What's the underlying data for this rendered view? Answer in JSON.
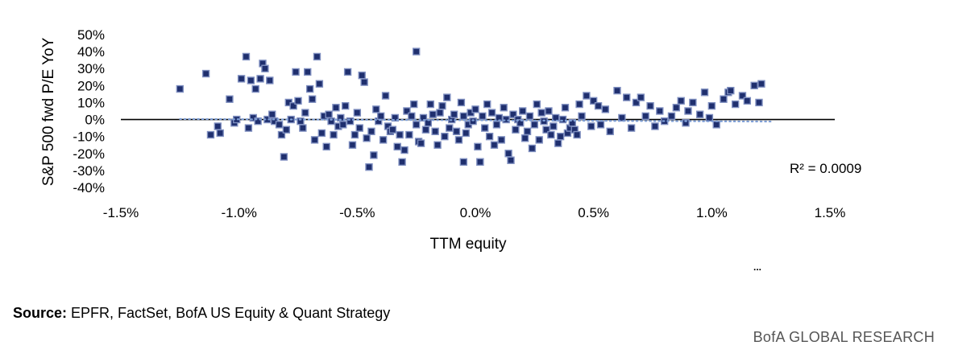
{
  "chart_data": {
    "type": "scatter",
    "xlabel": "TTM equity",
    "ylabel": "S&P 500 fwd P/E YoY",
    "x_ticks": [
      "-1.5%",
      "-1.0%",
      "-0.5%",
      "0.0%",
      "0.5%",
      "1.0%",
      "1.5%"
    ],
    "y_ticks": [
      "50%",
      "40%",
      "30%",
      "20%",
      "10%",
      "0%",
      "-10%",
      "-20%",
      "-30%",
      "-40%"
    ],
    "xlim": [
      -1.5,
      1.5
    ],
    "ylim": [
      -40,
      50
    ],
    "x_unit": "%",
    "y_unit": "%",
    "grid": false,
    "trendline": {
      "style": "dotted",
      "color": "#7f9fd6",
      "points": [
        [
          -1.25,
          0.3
        ],
        [
          1.25,
          -1.2
        ]
      ]
    },
    "r_squared_text": "R² = 0.0009",
    "marker": {
      "shape": "square",
      "fill": "#1f2f6e",
      "stroke": "#7f8fc0"
    },
    "points": [
      [
        -1.25,
        18
      ],
      [
        -1.14,
        27
      ],
      [
        -1.12,
        -9
      ],
      [
        -1.09,
        -4
      ],
      [
        -1.08,
        -8
      ],
      [
        -1.04,
        12
      ],
      [
        -1.02,
        -2
      ],
      [
        -1.01,
        0
      ],
      [
        -0.99,
        24
      ],
      [
        -0.97,
        37
      ],
      [
        -0.96,
        -5
      ],
      [
        -0.95,
        23
      ],
      [
        -0.94,
        1
      ],
      [
        -0.93,
        18
      ],
      [
        -0.92,
        -1
      ],
      [
        -0.91,
        24
      ],
      [
        -0.9,
        33
      ],
      [
        -0.89,
        30
      ],
      [
        -0.88,
        0
      ],
      [
        -0.87,
        23
      ],
      [
        -0.86,
        3
      ],
      [
        -0.85,
        -1
      ],
      [
        -0.83,
        -3
      ],
      [
        -0.82,
        -9
      ],
      [
        -0.81,
        -22
      ],
      [
        -0.8,
        -6
      ],
      [
        -0.79,
        10
      ],
      [
        -0.78,
        0
      ],
      [
        -0.77,
        8
      ],
      [
        -0.76,
        28
      ],
      [
        -0.75,
        11
      ],
      [
        -0.74,
        -1
      ],
      [
        -0.73,
        -5
      ],
      [
        -0.72,
        4
      ],
      [
        -0.71,
        28
      ],
      [
        -0.7,
        18
      ],
      [
        -0.69,
        12
      ],
      [
        -0.68,
        -12
      ],
      [
        -0.67,
        37
      ],
      [
        -0.66,
        21
      ],
      [
        -0.65,
        -8
      ],
      [
        -0.64,
        2
      ],
      [
        -0.63,
        -16
      ],
      [
        -0.62,
        3
      ],
      [
        -0.61,
        -1
      ],
      [
        -0.6,
        -9
      ],
      [
        -0.59,
        7
      ],
      [
        -0.58,
        -4
      ],
      [
        -0.57,
        1
      ],
      [
        -0.56,
        -3
      ],
      [
        -0.55,
        8
      ],
      [
        -0.54,
        28
      ],
      [
        -0.53,
        -1
      ],
      [
        -0.52,
        -15
      ],
      [
        -0.51,
        -9
      ],
      [
        -0.5,
        4
      ],
      [
        -0.49,
        -5
      ],
      [
        -0.48,
        26
      ],
      [
        -0.47,
        22
      ],
      [
        -0.46,
        -11
      ],
      [
        -0.45,
        -28
      ],
      [
        -0.44,
        -7
      ],
      [
        -0.43,
        -21
      ],
      [
        -0.42,
        6
      ],
      [
        -0.41,
        -1
      ],
      [
        -0.4,
        2
      ],
      [
        -0.39,
        -12
      ],
      [
        -0.38,
        14
      ],
      [
        -0.37,
        -4
      ],
      [
        -0.36,
        -7
      ],
      [
        -0.35,
        -6
      ],
      [
        -0.34,
        1
      ],
      [
        -0.33,
        -16
      ],
      [
        -0.32,
        -9
      ],
      [
        -0.31,
        -25
      ],
      [
        -0.3,
        -18
      ],
      [
        -0.29,
        5
      ],
      [
        -0.28,
        -9
      ],
      [
        -0.27,
        2
      ],
      [
        -0.26,
        9
      ],
      [
        -0.25,
        -3
      ],
      [
        -0.24,
        -13
      ],
      [
        -0.23,
        -14
      ],
      [
        -0.22,
        1
      ],
      [
        -0.21,
        -6
      ],
      [
        -0.2,
        -2
      ],
      [
        -0.19,
        9
      ],
      [
        -0.18,
        3
      ],
      [
        -0.17,
        -7
      ],
      [
        -0.16,
        -15
      ],
      [
        -0.15,
        4
      ],
      [
        -0.14,
        8
      ],
      [
        -0.13,
        -10
      ],
      [
        -0.12,
        13
      ],
      [
        -0.11,
        -5
      ],
      [
        -0.1,
        0
      ],
      [
        -0.09,
        3
      ],
      [
        -0.08,
        -7
      ],
      [
        -0.07,
        -12
      ],
      [
        -0.06,
        10
      ],
      [
        -0.05,
        2
      ],
      [
        -0.04,
        -8
      ],
      [
        -0.03,
        -3
      ],
      [
        -0.02,
        4
      ],
      [
        -0.01,
        -1
      ],
      [
        0,
        6
      ],
      [
        0.01,
        -16
      ],
      [
        0.02,
        -25
      ],
      [
        0.03,
        2
      ],
      [
        0.04,
        -5
      ],
      [
        0.05,
        9
      ],
      [
        0.06,
        -10
      ],
      [
        0.07,
        4
      ],
      [
        0.08,
        -15
      ],
      [
        0.09,
        -3
      ],
      [
        0.1,
        1
      ],
      [
        0.11,
        -12
      ],
      [
        0.12,
        7
      ],
      [
        0.13,
        0
      ],
      [
        0.14,
        -20
      ],
      [
        0.15,
        -24
      ],
      [
        0.16,
        3
      ],
      [
        0.17,
        -6
      ],
      [
        0.18,
        0
      ],
      [
        0.19,
        -2
      ],
      [
        0.2,
        5
      ],
      [
        0.21,
        -11
      ],
      [
        0.22,
        -7
      ],
      [
        0.23,
        2
      ],
      [
        0.24,
        -17
      ],
      [
        0.25,
        -3
      ],
      [
        0.26,
        9
      ],
      [
        0.27,
        -12
      ],
      [
        0.28,
        4
      ],
      [
        0.29,
        -1
      ],
      [
        0.3,
        -6
      ],
      [
        0.31,
        5
      ],
      [
        0.32,
        -9
      ],
      [
        0.33,
        -4
      ],
      [
        0.34,
        1
      ],
      [
        0.35,
        -14
      ],
      [
        0.36,
        -10
      ],
      [
        0.37,
        0
      ],
      [
        0.38,
        7
      ],
      [
        0.39,
        -8
      ],
      [
        0.4,
        -5
      ],
      [
        0.41,
        -2
      ],
      [
        0.42,
        -6
      ],
      [
        0.43,
        -9
      ],
      [
        0.44,
        9
      ],
      [
        0.45,
        2
      ],
      [
        0.47,
        14
      ],
      [
        0.49,
        -4
      ],
      [
        0.5,
        11
      ],
      [
        0.52,
        8
      ],
      [
        0.53,
        -3
      ],
      [
        0.55,
        6
      ],
      [
        0.57,
        -7
      ],
      [
        0.6,
        17
      ],
      [
        0.62,
        1
      ],
      [
        0.64,
        13
      ],
      [
        0.66,
        -5
      ],
      [
        0.68,
        10
      ],
      [
        0.7,
        13
      ],
      [
        0.72,
        2
      ],
      [
        0.74,
        8
      ],
      [
        0.76,
        -4
      ],
      [
        0.78,
        5
      ],
      [
        0.8,
        -1
      ],
      [
        0.83,
        2
      ],
      [
        0.85,
        7
      ],
      [
        0.87,
        11
      ],
      [
        0.89,
        -2
      ],
      [
        0.9,
        5
      ],
      [
        0.92,
        10
      ],
      [
        0.95,
        3
      ],
      [
        0.97,
        16
      ],
      [
        0.99,
        1
      ],
      [
        1.0,
        8
      ],
      [
        1.02,
        -3
      ],
      [
        1.05,
        12
      ],
      [
        1.07,
        16
      ],
      [
        1.08,
        17
      ],
      [
        1.1,
        9
      ],
      [
        1.13,
        14
      ],
      [
        1.15,
        11
      ],
      [
        1.18,
        20
      ],
      [
        1.2,
        10
      ],
      [
        1.21,
        21
      ],
      [
        -0.25,
        40
      ],
      [
        -0.05,
        -25
      ],
      [
        0.02,
        -25
      ]
    ]
  },
  "source": {
    "label": "Source:",
    "text": "EPFR, FactSet, BofA US Equity & Quant Strategy"
  },
  "brand": "BofA GLOBAL RESEARCH",
  "ellipsis": "..."
}
